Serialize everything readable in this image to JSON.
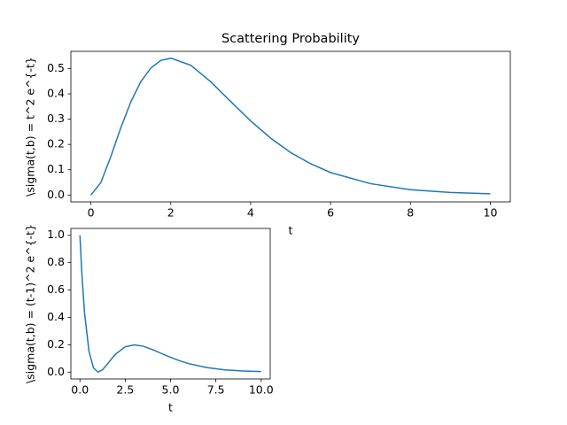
{
  "chart_data": [
    {
      "type": "line",
      "title": "Scattering Probability",
      "x_label": "t",
      "y_label": "\\sigma(t,b) = t^2 e^{-t}",
      "x": [
        0,
        0.25,
        0.5,
        0.75,
        1,
        1.25,
        1.5,
        1.75,
        2,
        2.5,
        3,
        3.5,
        4,
        4.5,
        5,
        5.5,
        6,
        7,
        8,
        9,
        10
      ],
      "values": [
        0,
        0.049,
        0.152,
        0.266,
        0.368,
        0.448,
        0.502,
        0.532,
        0.541,
        0.513,
        0.448,
        0.37,
        0.293,
        0.225,
        0.168,
        0.124,
        0.089,
        0.045,
        0.021,
        0.01,
        0.005
      ],
      "color": "#1f77b4",
      "xlim": [
        -0.5,
        10.5
      ],
      "xticks": [
        0,
        2,
        4,
        6,
        8,
        10
      ],
      "ylim": [
        -0.027,
        0.568
      ],
      "yticks": [
        {
          "value": 0,
          "label": "0.0"
        },
        {
          "value": 0.1,
          "label": "0.1"
        },
        {
          "value": 0.2,
          "label": "0.2"
        },
        {
          "value": 0.3,
          "label": "0.3"
        },
        {
          "value": 0.4,
          "label": "0.4"
        },
        {
          "value": 0.5,
          "label": "0.5"
        }
      ]
    },
    {
      "type": "line",
      "x_label": "t",
      "y_label": "\\sigma(t,b) = (t-1)^2 e^{-t}",
      "x": [
        0,
        0.1,
        0.25,
        0.5,
        0.75,
        1,
        1.25,
        1.5,
        1.75,
        2,
        2.5,
        3,
        3.5,
        4,
        4.5,
        5,
        5.5,
        6,
        7,
        8,
        9,
        10
      ],
      "values": [
        1,
        0.733,
        0.438,
        0.152,
        0.03,
        0,
        0.018,
        0.056,
        0.098,
        0.135,
        0.185,
        0.199,
        0.189,
        0.165,
        0.136,
        0.108,
        0.083,
        0.062,
        0.033,
        0.016,
        0.008,
        0.004
      ],
      "color": "#1f77b4",
      "xlim": [
        -0.5,
        10.5
      ],
      "xticks": [
        {
          "value": 0,
          "label": "0.0"
        },
        {
          "value": 2.5,
          "label": "2.5"
        },
        {
          "value": 5,
          "label": "5.0"
        },
        {
          "value": 7.5,
          "label": "7.5"
        },
        {
          "value": 10,
          "label": "10.0"
        }
      ],
      "ylim": [
        -0.05,
        1.05
      ],
      "yticks": [
        {
          "value": 0,
          "label": "0.0"
        },
        {
          "value": 0.2,
          "label": "0.2"
        },
        {
          "value": 0.4,
          "label": "0.4"
        },
        {
          "value": 0.6,
          "label": "0.6"
        },
        {
          "value": 0.8,
          "label": "0.8"
        },
        {
          "value": 1,
          "label": "1.0"
        }
      ]
    }
  ]
}
